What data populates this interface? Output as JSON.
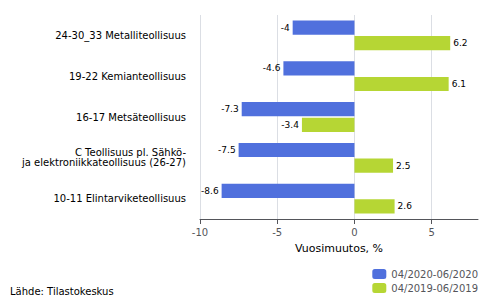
{
  "chart_data": {
    "type": "bar",
    "orientation": "horizontal",
    "categories": [
      "10-11 Elintarviketeollisuus",
      "C Teollisuus pl. Sähkö-\nja elektroniikkateollisuus (26-27)",
      "16-17 Metsäteollisuus",
      "19-22 Kemianteollisuus",
      "24-30_33 Metalliteollisuus"
    ],
    "series": [
      {
        "name": "04/2020-06/2020",
        "values": [
          -8.6,
          -7.5,
          -7.3,
          -4.6,
          -4.0
        ]
      },
      {
        "name": "04/2019-06/2019",
        "values": [
          2.6,
          2.5,
          -3.4,
          6.1,
          6.2
        ]
      }
    ],
    "xlabel": "Vuosimuutos, %",
    "xlim": [
      -10,
      8
    ],
    "xticks": [
      -10,
      -5,
      0,
      5
    ],
    "grid": true,
    "legend": "lower right",
    "data_labels": true,
    "annotations": [
      "Lähde: Tilastokeskus"
    ]
  }
}
